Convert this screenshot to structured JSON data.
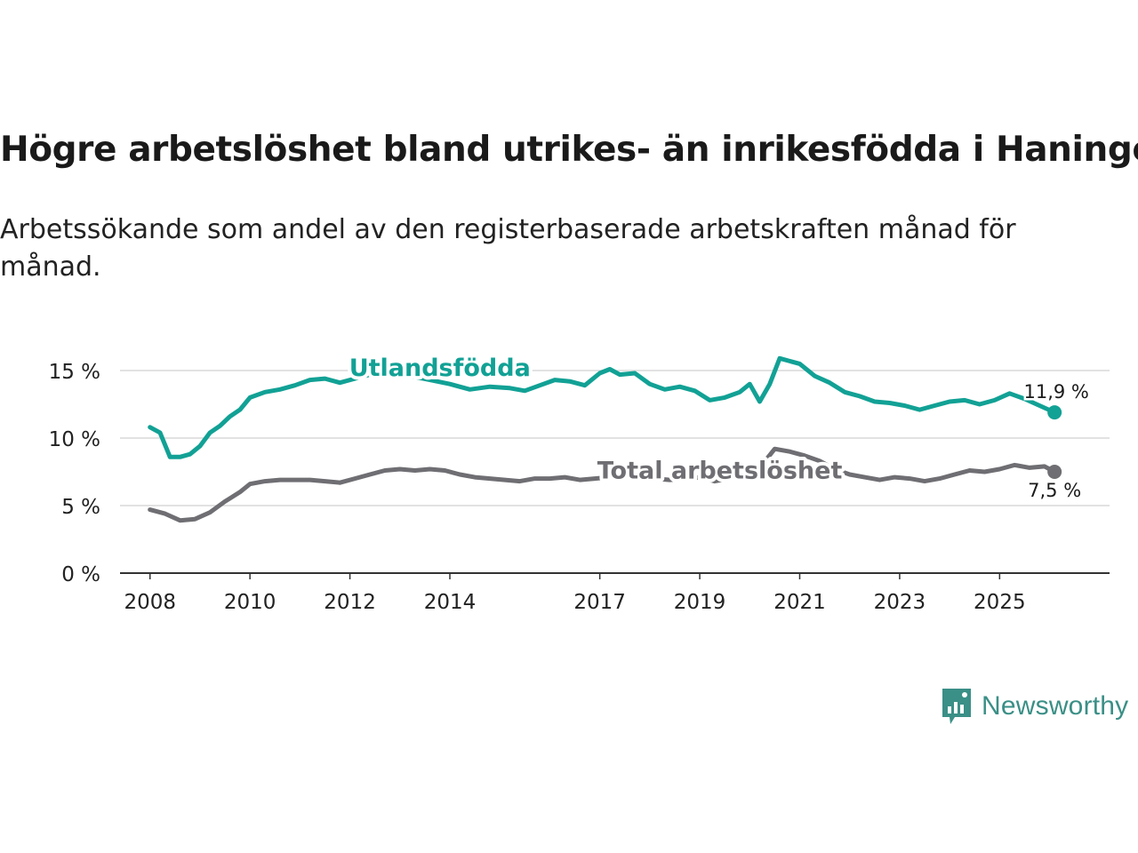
{
  "title": "Högre arbetslöshet bland utrikes- än inrikesfödda i Haninge",
  "subtitle": "Arbetssökande som andel av den registerbaserade arbetskraften månad för månad.",
  "brand": {
    "name": "Newsworthy",
    "color": "#3a8f86"
  },
  "chart_data": {
    "type": "line",
    "title": "Högre arbetslöshet bland utrikes- än inrikesfödda i Haninge",
    "xlabel": "",
    "ylabel": "",
    "ylim": [
      0,
      17
    ],
    "xlim": [
      2007.4,
      2027.2
    ],
    "yticks": [
      0,
      5,
      10,
      15
    ],
    "ytick_labels": [
      "0 %",
      "5 %",
      "10 %",
      "15 %"
    ],
    "xticks": [
      2008,
      2010,
      2012,
      2014,
      2017,
      2019,
      2021,
      2023,
      2025
    ],
    "xtick_labels": [
      "2008",
      "2010",
      "2012",
      "2014",
      "2017",
      "2019",
      "2021",
      "2023",
      "2025"
    ],
    "grid": true,
    "series": [
      {
        "name": "Utlandsfödda",
        "color": "#12a195",
        "end_label": "11,9 %",
        "points": [
          [
            2008.0,
            10.8
          ],
          [
            2008.2,
            10.4
          ],
          [
            2008.4,
            8.6
          ],
          [
            2008.6,
            8.6
          ],
          [
            2008.8,
            8.8
          ],
          [
            2009.0,
            9.4
          ],
          [
            2009.2,
            10.4
          ],
          [
            2009.4,
            10.9
          ],
          [
            2009.6,
            11.6
          ],
          [
            2009.8,
            12.1
          ],
          [
            2010.0,
            13.0
          ],
          [
            2010.3,
            13.4
          ],
          [
            2010.6,
            13.6
          ],
          [
            2010.9,
            13.9
          ],
          [
            2011.2,
            14.3
          ],
          [
            2011.5,
            14.4
          ],
          [
            2011.8,
            14.1
          ],
          [
            2012.1,
            14.4
          ],
          [
            2012.4,
            14.7
          ],
          [
            2012.8,
            14.8
          ],
          [
            2013.2,
            14.6
          ],
          [
            2013.6,
            14.3
          ],
          [
            2014.0,
            14.0
          ],
          [
            2014.4,
            13.6
          ],
          [
            2014.8,
            13.8
          ],
          [
            2015.2,
            13.7
          ],
          [
            2015.5,
            13.5
          ],
          [
            2015.8,
            13.9
          ],
          [
            2016.1,
            14.3
          ],
          [
            2016.4,
            14.2
          ],
          [
            2016.7,
            13.9
          ],
          [
            2017.0,
            14.8
          ],
          [
            2017.2,
            15.1
          ],
          [
            2017.4,
            14.7
          ],
          [
            2017.7,
            14.8
          ],
          [
            2018.0,
            14.0
          ],
          [
            2018.3,
            13.6
          ],
          [
            2018.6,
            13.8
          ],
          [
            2018.9,
            13.5
          ],
          [
            2019.2,
            12.8
          ],
          [
            2019.5,
            13.0
          ],
          [
            2019.8,
            13.4
          ],
          [
            2020.0,
            14.0
          ],
          [
            2020.2,
            12.7
          ],
          [
            2020.4,
            14.0
          ],
          [
            2020.6,
            15.9
          ],
          [
            2020.8,
            15.7
          ],
          [
            2021.0,
            15.5
          ],
          [
            2021.3,
            14.6
          ],
          [
            2021.6,
            14.1
          ],
          [
            2021.9,
            13.4
          ],
          [
            2022.2,
            13.1
          ],
          [
            2022.5,
            12.7
          ],
          [
            2022.8,
            12.6
          ],
          [
            2023.1,
            12.4
          ],
          [
            2023.4,
            12.1
          ],
          [
            2023.7,
            12.4
          ],
          [
            2024.0,
            12.7
          ],
          [
            2024.3,
            12.8
          ],
          [
            2024.6,
            12.5
          ],
          [
            2024.9,
            12.8
          ],
          [
            2025.2,
            13.3
          ],
          [
            2025.5,
            12.9
          ],
          [
            2025.8,
            12.4
          ],
          [
            2026.1,
            11.9
          ]
        ]
      },
      {
        "name": "Total arbetslöshet",
        "color": "#6e6e73",
        "end_label": "7,5 %",
        "points": [
          [
            2008.0,
            4.7
          ],
          [
            2008.3,
            4.4
          ],
          [
            2008.6,
            3.9
          ],
          [
            2008.9,
            4.0
          ],
          [
            2009.2,
            4.5
          ],
          [
            2009.5,
            5.3
          ],
          [
            2009.8,
            6.0
          ],
          [
            2010.0,
            6.6
          ],
          [
            2010.3,
            6.8
          ],
          [
            2010.6,
            6.9
          ],
          [
            2010.9,
            6.9
          ],
          [
            2011.2,
            6.9
          ],
          [
            2011.5,
            6.8
          ],
          [
            2011.8,
            6.7
          ],
          [
            2012.1,
            7.0
          ],
          [
            2012.4,
            7.3
          ],
          [
            2012.7,
            7.6
          ],
          [
            2013.0,
            7.7
          ],
          [
            2013.3,
            7.6
          ],
          [
            2013.6,
            7.7
          ],
          [
            2013.9,
            7.6
          ],
          [
            2014.2,
            7.3
          ],
          [
            2014.5,
            7.1
          ],
          [
            2014.8,
            7.0
          ],
          [
            2015.1,
            6.9
          ],
          [
            2015.4,
            6.8
          ],
          [
            2015.7,
            7.0
          ],
          [
            2016.0,
            7.0
          ],
          [
            2016.3,
            7.1
          ],
          [
            2016.6,
            6.9
          ],
          [
            2016.9,
            7.0
          ],
          [
            2017.2,
            7.1
          ],
          [
            2017.5,
            7.2
          ],
          [
            2017.8,
            7.1
          ],
          [
            2018.1,
            7.0
          ],
          [
            2018.4,
            6.9
          ],
          [
            2018.7,
            7.0
          ],
          [
            2019.0,
            7.1
          ],
          [
            2019.3,
            6.8
          ],
          [
            2019.6,
            7.0
          ],
          [
            2019.9,
            7.3
          ],
          [
            2020.2,
            7.8
          ],
          [
            2020.5,
            9.2
          ],
          [
            2020.8,
            9.0
          ],
          [
            2021.1,
            8.7
          ],
          [
            2021.4,
            8.3
          ],
          [
            2021.7,
            7.7
          ],
          [
            2022.0,
            7.3
          ],
          [
            2022.3,
            7.1
          ],
          [
            2022.6,
            6.9
          ],
          [
            2022.9,
            7.1
          ],
          [
            2023.2,
            7.0
          ],
          [
            2023.5,
            6.8
          ],
          [
            2023.8,
            7.0
          ],
          [
            2024.1,
            7.3
          ],
          [
            2024.4,
            7.6
          ],
          [
            2024.7,
            7.5
          ],
          [
            2025.0,
            7.7
          ],
          [
            2025.3,
            8.0
          ],
          [
            2025.6,
            7.8
          ],
          [
            2025.9,
            7.9
          ],
          [
            2026.1,
            7.5
          ]
        ]
      }
    ]
  }
}
